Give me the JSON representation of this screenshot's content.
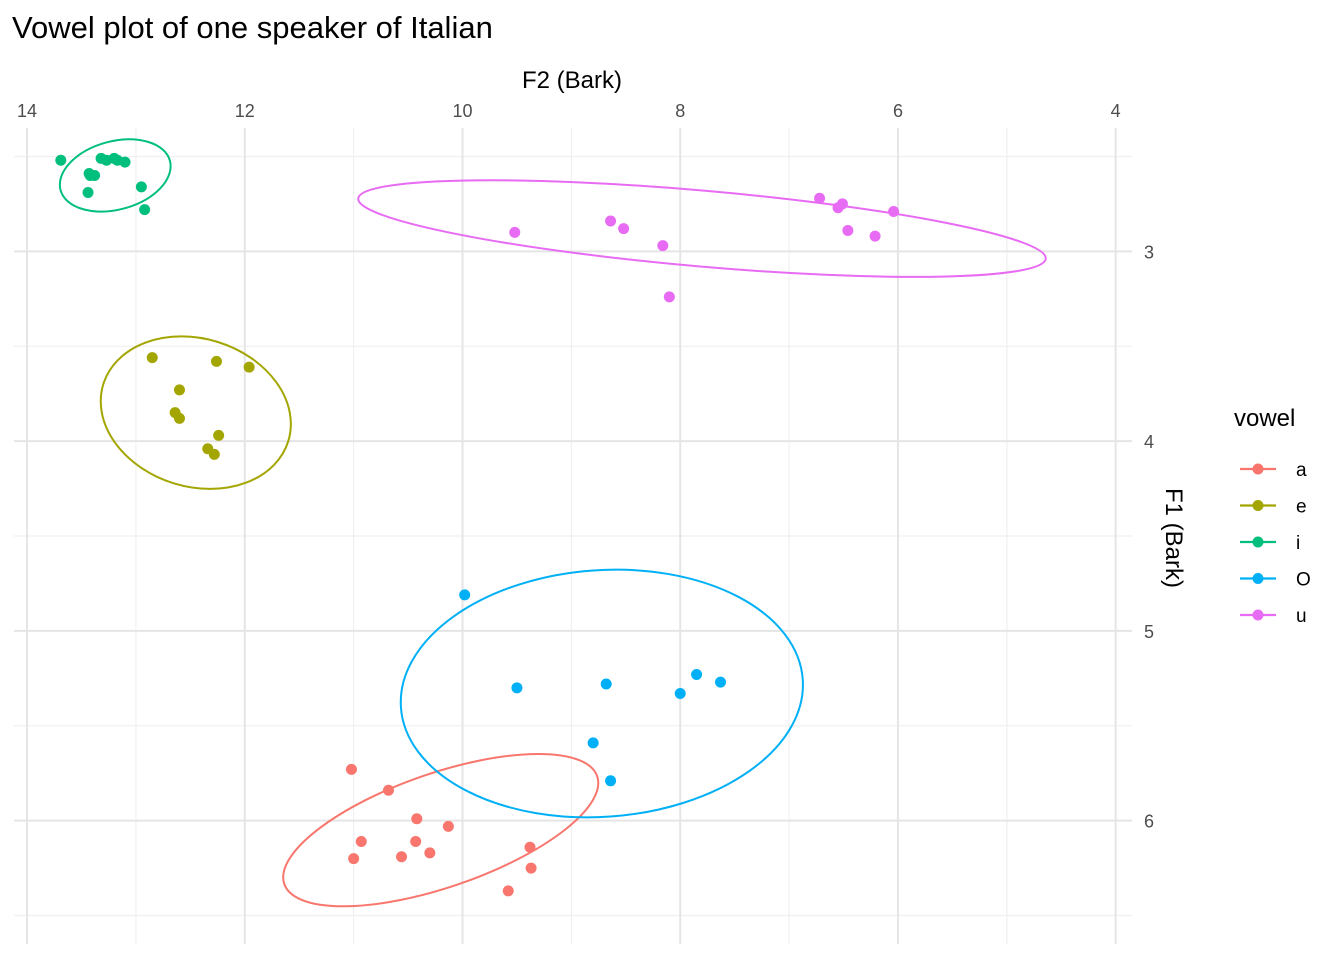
{
  "chart_data": {
    "type": "scatter",
    "title": "Vowel plot of one speaker of Italian",
    "xlabel": "F2 (Bark)",
    "ylabel": "F1 (Bark)",
    "x_reversed": true,
    "y_reversed": true,
    "x_axis_position": "top",
    "y_axis_position": "right",
    "xlim": [
      14.12,
      3.85
    ],
    "ylim": [
      2.35,
      6.65
    ],
    "x_ticks": [
      14,
      12,
      10,
      8,
      6,
      4
    ],
    "x_tick_labels": [
      "14",
      "12",
      "10",
      "8",
      "6",
      "4"
    ],
    "y_ticks": [
      3,
      4,
      5,
      6
    ],
    "y_tick_labels": [
      "3",
      "4",
      "5",
      "6"
    ],
    "grid": true,
    "legend": {
      "title": "vowel",
      "position": "right"
    },
    "series": [
      {
        "name": "a",
        "color": "#F8766D",
        "points": [
          [
            11.02,
            5.73
          ],
          [
            10.68,
            5.84
          ],
          [
            10.42,
            5.99
          ],
          [
            10.13,
            6.03
          ],
          [
            10.93,
            6.11
          ],
          [
            10.43,
            6.11
          ],
          [
            10.3,
            6.17
          ],
          [
            10.56,
            6.19
          ],
          [
            11.0,
            6.2
          ],
          [
            9.38,
            6.14
          ],
          [
            9.37,
            6.25
          ],
          [
            9.58,
            6.37
          ]
        ],
        "ellipse": {
          "cx": 10.2,
          "cy": 6.05,
          "rx": 1.52,
          "ry": 0.3,
          "angle_deg": 19
        }
      },
      {
        "name": "e",
        "color": "#A3A500",
        "points": [
          [
            12.85,
            3.56
          ],
          [
            12.26,
            3.58
          ],
          [
            11.96,
            3.61
          ],
          [
            12.6,
            3.73
          ],
          [
            12.64,
            3.85
          ],
          [
            12.6,
            3.88
          ],
          [
            12.24,
            3.97
          ],
          [
            12.34,
            4.04
          ],
          [
            12.28,
            4.07
          ]
        ],
        "ellipse": {
          "cx": 12.45,
          "cy": 3.85,
          "rx": 0.68,
          "ry": 0.51,
          "angle_deg": 73
        }
      },
      {
        "name": "i",
        "color": "#00BF7D",
        "points": [
          [
            13.69,
            2.52
          ],
          [
            13.32,
            2.51
          ],
          [
            13.27,
            2.52
          ],
          [
            13.2,
            2.51
          ],
          [
            13.17,
            2.52
          ],
          [
            13.1,
            2.53
          ],
          [
            13.43,
            2.59
          ],
          [
            13.38,
            2.6
          ],
          [
            13.42,
            2.6
          ],
          [
            12.95,
            2.66
          ],
          [
            13.44,
            2.69
          ],
          [
            12.92,
            2.78
          ]
        ],
        "ellipse": {
          "cx": 13.19,
          "cy": 2.6,
          "rx": 0.52,
          "ry": 0.18,
          "angle_deg": 15
        }
      },
      {
        "name": "O",
        "color": "#00B0F6",
        "points": [
          [
            9.98,
            4.81
          ],
          [
            9.5,
            5.3
          ],
          [
            8.68,
            5.28
          ],
          [
            7.85,
            5.23
          ],
          [
            7.63,
            5.27
          ],
          [
            8.0,
            5.33
          ],
          [
            8.8,
            5.59
          ],
          [
            8.64,
            5.79
          ]
        ],
        "ellipse": {
          "cx": 8.72,
          "cy": 5.33,
          "rx": 1.85,
          "ry": 0.65,
          "angle_deg": 4
        }
      },
      {
        "name": "u",
        "color": "#E76BF3",
        "points": [
          [
            9.52,
            2.9
          ],
          [
            8.64,
            2.84
          ],
          [
            8.52,
            2.88
          ],
          [
            8.16,
            2.97
          ],
          [
            8.1,
            3.24
          ],
          [
            6.72,
            2.72
          ],
          [
            6.51,
            2.75
          ],
          [
            6.55,
            2.77
          ],
          [
            6.46,
            2.89
          ],
          [
            6.21,
            2.92
          ],
          [
            6.04,
            2.79
          ]
        ],
        "ellipse": {
          "cx": 7.8,
          "cy": 2.88,
          "rx": 3.17,
          "ry": 0.2,
          "angle_deg": -5
        }
      }
    ]
  }
}
